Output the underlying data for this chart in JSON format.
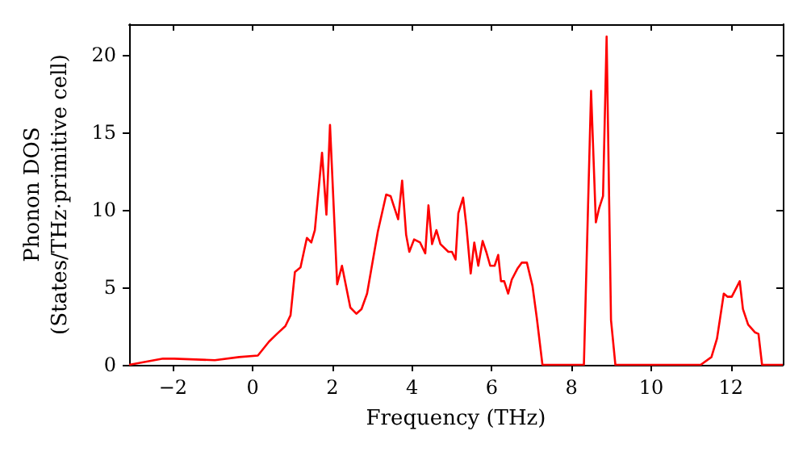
{
  "chart_data": {
    "type": "line",
    "xlabel": "Frequency (THz)",
    "ylabel": "Phonon DOS\n(States/THz·primitive cell)",
    "xlim": [
      -3.1,
      13.3
    ],
    "ylim": [
      0,
      22
    ],
    "xticks": [
      -2,
      0,
      2,
      4,
      6,
      8,
      10,
      12
    ],
    "yticks": [
      0,
      5,
      10,
      15,
      20
    ],
    "grid": false,
    "marker": "none",
    "line_style": "solid",
    "x": [
      -3.1,
      -2.25,
      -1.97,
      -0.95,
      -0.34,
      0.13,
      0.41,
      0.61,
      0.82,
      0.95,
      1.06,
      1.2,
      1.36,
      1.47,
      1.56,
      1.74,
      1.85,
      1.94,
      2.12,
      2.24,
      2.45,
      2.6,
      2.73,
      2.87,
      3.14,
      3.35,
      3.46,
      3.65,
      3.75,
      3.85,
      3.93,
      4.05,
      4.2,
      4.33,
      4.41,
      4.5,
      4.61,
      4.71,
      4.91,
      5.0,
      5.09,
      5.16,
      5.28,
      5.36,
      5.47,
      5.56,
      5.66,
      5.77,
      5.86,
      5.96,
      6.07,
      6.16,
      6.23,
      6.31,
      6.41,
      6.5,
      6.64,
      6.75,
      6.88,
      7.02,
      7.13,
      7.27,
      8.31,
      8.49,
      8.61,
      8.69,
      8.79,
      8.88,
      8.99,
      9.1,
      11.24,
      11.51,
      11.65,
      11.82,
      11.91,
      12.02,
      12.22,
      12.3,
      12.43,
      12.6,
      12.69,
      12.78,
      13.3
    ],
    "series": [
      {
        "color": "#ff0000",
        "values": [
          0,
          0.4,
          0.4,
          0.3,
          0.5,
          0.6,
          1.5,
          2.0,
          2.5,
          3.2,
          6.0,
          6.3,
          8.2,
          7.9,
          8.7,
          13.7,
          9.7,
          15.5,
          5.2,
          6.4,
          3.7,
          3.3,
          3.6,
          4.6,
          8.6,
          11.0,
          10.9,
          9.4,
          11.9,
          8.4,
          7.3,
          8.1,
          7.9,
          7.2,
          10.3,
          7.8,
          8.7,
          7.8,
          7.3,
          7.3,
          6.8,
          9.8,
          10.8,
          9.0,
          5.9,
          7.9,
          6.4,
          8.0,
          7.3,
          6.4,
          6.4,
          7.1,
          5.4,
          5.4,
          4.6,
          5.5,
          6.2,
          6.6,
          6.6,
          5.1,
          3.0,
          0,
          0,
          17.7,
          9.2,
          10.1,
          10.9,
          21.2,
          2.9,
          0,
          0,
          0.5,
          1.7,
          4.6,
          4.4,
          4.4,
          5.4,
          3.6,
          2.6,
          2.1,
          2.0,
          0,
          0
        ]
      }
    ]
  }
}
